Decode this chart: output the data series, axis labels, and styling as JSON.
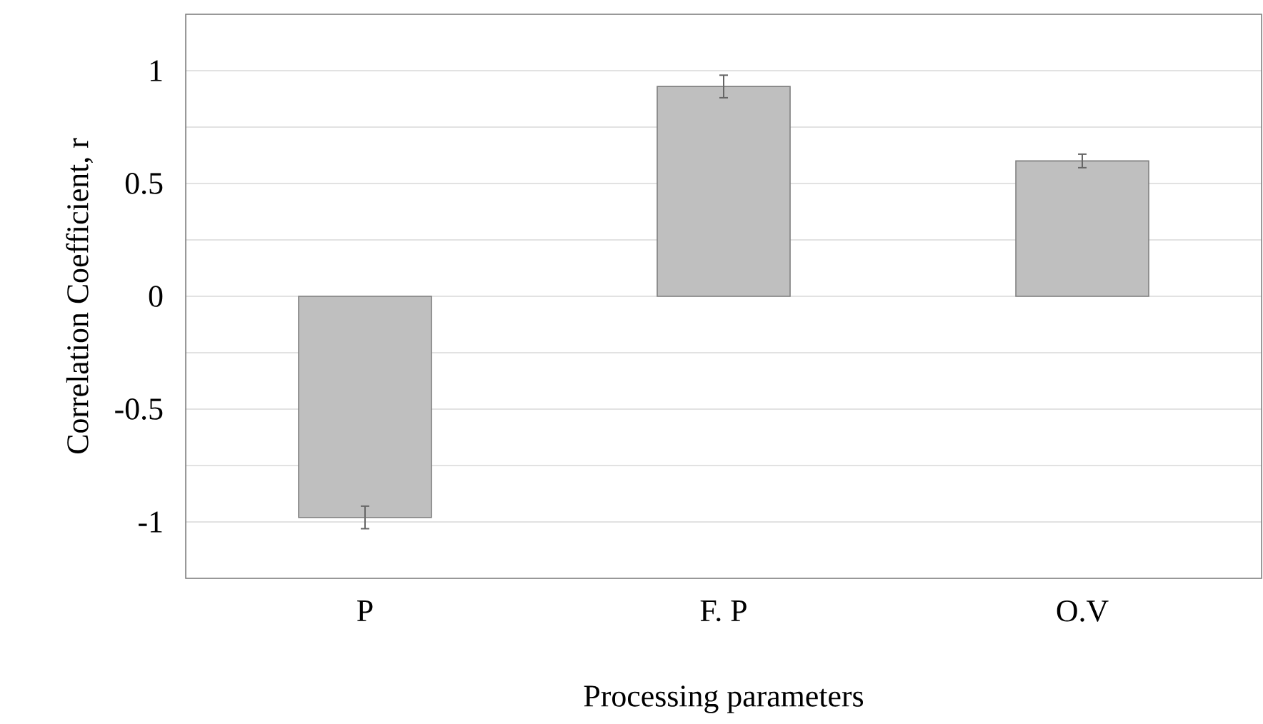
{
  "chart_data": {
    "type": "bar",
    "xlabel": "Processing parameters",
    "ylabel": "Correlation Coefficient, r",
    "categories": [
      "P",
      "F. P",
      "O.V"
    ],
    "values": [
      -0.98,
      0.93,
      0.6
    ],
    "errors": [
      0.05,
      0.05,
      0.03
    ],
    "color": "#bfbfbf",
    "ylim": [
      -1.25,
      1.25
    ],
    "yticks": [
      {
        "value": -1.25,
        "label": null
      },
      -1,
      {
        "value": -0.75,
        "label": null
      },
      -0.5,
      {
        "value": -0.25,
        "label": null
      },
      0,
      {
        "value": 0.25,
        "label": null
      },
      0.5,
      {
        "value": 0.75,
        "label": null
      },
      1,
      {
        "value": 1.25,
        "label": null
      }
    ],
    "grid": "y"
  }
}
